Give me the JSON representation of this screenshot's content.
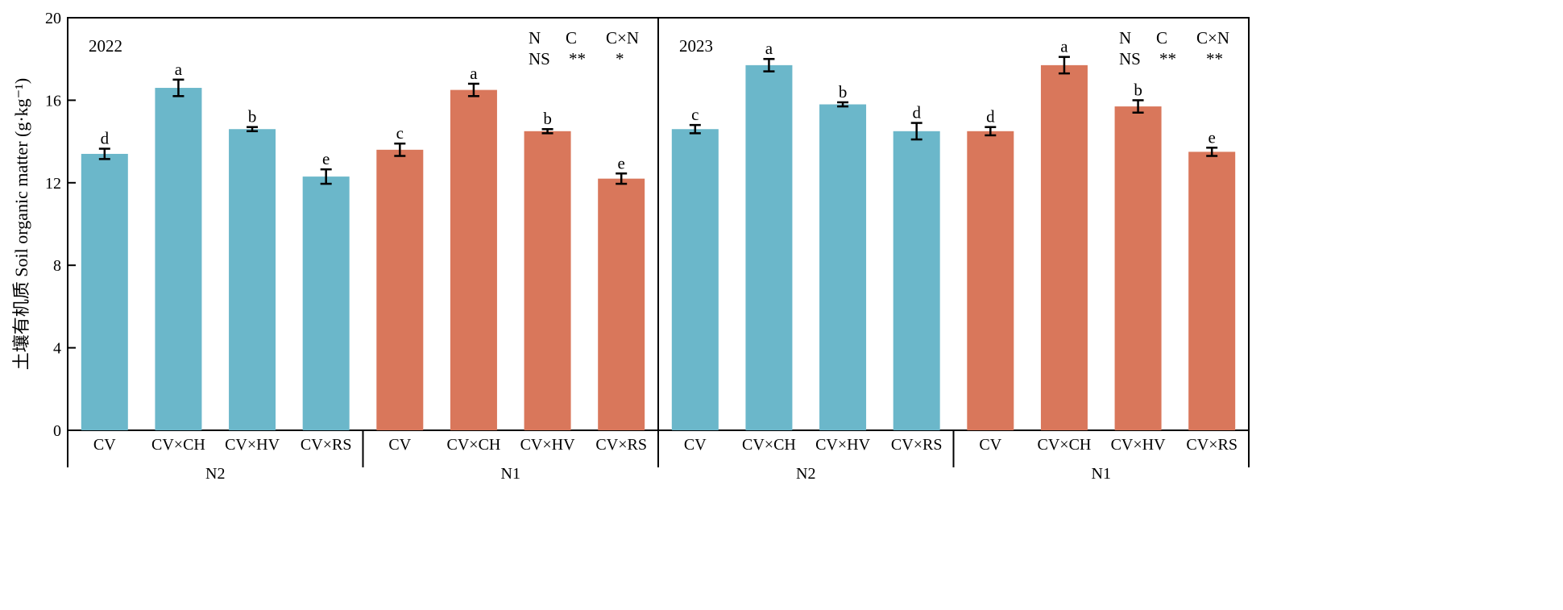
{
  "chart_data": {
    "type": "bar",
    "ylabel": "土壤有机质 Soil organic matter (g·kg⁻¹)",
    "ylabel_cn": "土壤有机质",
    "ylabel_en": "Soil organic matter (g·kg",
    "ylabel_sup": "-1",
    "ylabel_close": ")",
    "ylim": [
      0,
      20
    ],
    "yticks": [
      0,
      4,
      8,
      12,
      16,
      20
    ],
    "colors": {
      "N2": "#6bb7ca",
      "N1": "#d9775b"
    },
    "categories": [
      "CV",
      "CV×CH",
      "CV×HV",
      "CV×RS"
    ],
    "panels": [
      {
        "title": "2022",
        "stats_header": [
          "N",
          "C",
          "C×N"
        ],
        "stats_values": [
          "NS",
          "**",
          "*"
        ],
        "groups": [
          {
            "name": "N2",
            "values": [
              13.4,
              16.6,
              14.6,
              12.3
            ],
            "errors": [
              0.25,
              0.4,
              0.1,
              0.35
            ],
            "letters": [
              "d",
              "a",
              "b",
              "e"
            ]
          },
          {
            "name": "N1",
            "values": [
              13.6,
              16.5,
              14.5,
              12.2
            ],
            "errors": [
              0.3,
              0.3,
              0.1,
              0.25
            ],
            "letters": [
              "c",
              "a",
              "b",
              "e"
            ]
          }
        ]
      },
      {
        "title": "2023",
        "stats_header": [
          "N",
          "C",
          "C×N"
        ],
        "stats_values": [
          "NS",
          "**",
          "**"
        ],
        "groups": [
          {
            "name": "N2",
            "values": [
              14.6,
              17.7,
              15.8,
              14.5
            ],
            "errors": [
              0.2,
              0.3,
              0.1,
              0.4
            ],
            "letters": [
              "c",
              "a",
              "b",
              "d"
            ]
          },
          {
            "name": "N1",
            "values": [
              14.5,
              17.7,
              15.7,
              13.5
            ],
            "errors": [
              0.2,
              0.4,
              0.3,
              0.2
            ],
            "letters": [
              "d",
              "a",
              "b",
              "e"
            ]
          }
        ]
      }
    ]
  }
}
